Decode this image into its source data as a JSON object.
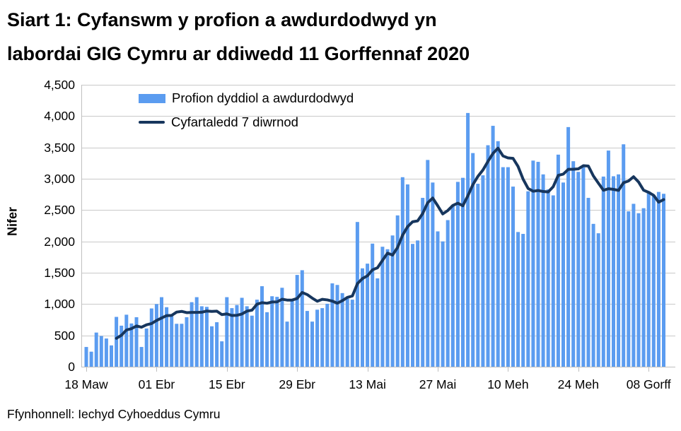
{
  "header": {
    "title_lines": [
      "Siart 1: Cyfanswm y profion a awdurdodwyd yn",
      "labordai GIG Cymru ar ddiwedd 11 Gorffennaf 2020"
    ]
  },
  "footer": {
    "source": "Ffynhonnell: Iechyd Cyhoeddus Cymru"
  },
  "colors": {
    "bar": "#5B9CF0",
    "line": "#17365D",
    "grid": "#C9C9C9",
    "axis": "#BFBFBF",
    "text": "#000000"
  },
  "chart_data": {
    "type": "bar",
    "title": "Siart 1: Cyfanswm y profion a awdurdodwyd yn labordai GIG Cymru ar ddiwedd 11 Gorffennaf 2020",
    "xlabel": "",
    "ylabel": "Nifer",
    "ylim": [
      0,
      4500
    ],
    "y_tick_step": 500,
    "y_tick_labels": [
      "0",
      "500",
      "1,000",
      "1,500",
      "2,000",
      "2,500",
      "3,000",
      "3,500",
      "4,000",
      "4,500"
    ],
    "x_tick_labels": [
      "18 Maw",
      "01 Ebr",
      "15 Ebr",
      "29 Ebr",
      "13 Mai",
      "27 Mai",
      "10 Meh",
      "24 Meh",
      "08 Gorff"
    ],
    "x_tick_indices": [
      0,
      14,
      28,
      42,
      56,
      70,
      84,
      98,
      112
    ],
    "n_days": 116,
    "date_range": "18 Mawrth 2020 - 11 Gorffennaf 2020",
    "grid": "horizontal",
    "legend_position": "top-left-inside",
    "series": [
      {
        "name": "Profion dyddiol a awdurdodwyd",
        "type": "bar",
        "color": "#5B9CF0",
        "values": [
          315,
          240,
          545,
          490,
          450,
          340,
          795,
          655,
          830,
          690,
          790,
          315,
          610,
          930,
          1000,
          1110,
          950,
          820,
          685,
          685,
          790,
          1030,
          1110,
          965,
          955,
          645,
          710,
          405,
          1110,
          935,
          985,
          1100,
          965,
          815,
          1070,
          1285,
          870,
          1125,
          1115,
          1260,
          720,
          1070,
          1465,
          1540,
          890,
          720,
          910,
          935,
          1005,
          1330,
          1305,
          1175,
          1085,
          1070,
          2310,
          1570,
          1645,
          1965,
          1410,
          1915,
          1875,
          2095,
          2415,
          3025,
          2910,
          1960,
          2015,
          2695,
          3300,
          2940,
          2160,
          2000,
          2340,
          2580,
          2950,
          3015,
          4050,
          3410,
          2920,
          3055,
          3535,
          3845,
          3600,
          3185,
          3185,
          2875,
          2150,
          2120,
          2800,
          3290,
          3270,
          3070,
          2830,
          2735,
          3385,
          2940,
          3825,
          3280,
          3110,
          3185,
          2695,
          2280,
          2130,
          3035,
          3450,
          3040,
          3070,
          3550,
          2480,
          2600,
          2450,
          2530,
          2800,
          2740,
          2790,
          2760
        ]
      },
      {
        "name": "Cyfartaledd 7 diwrnod",
        "type": "line",
        "color": "#17365D",
        "derivation": "rolling-mean-window-7-of-bar-series"
      }
    ]
  }
}
